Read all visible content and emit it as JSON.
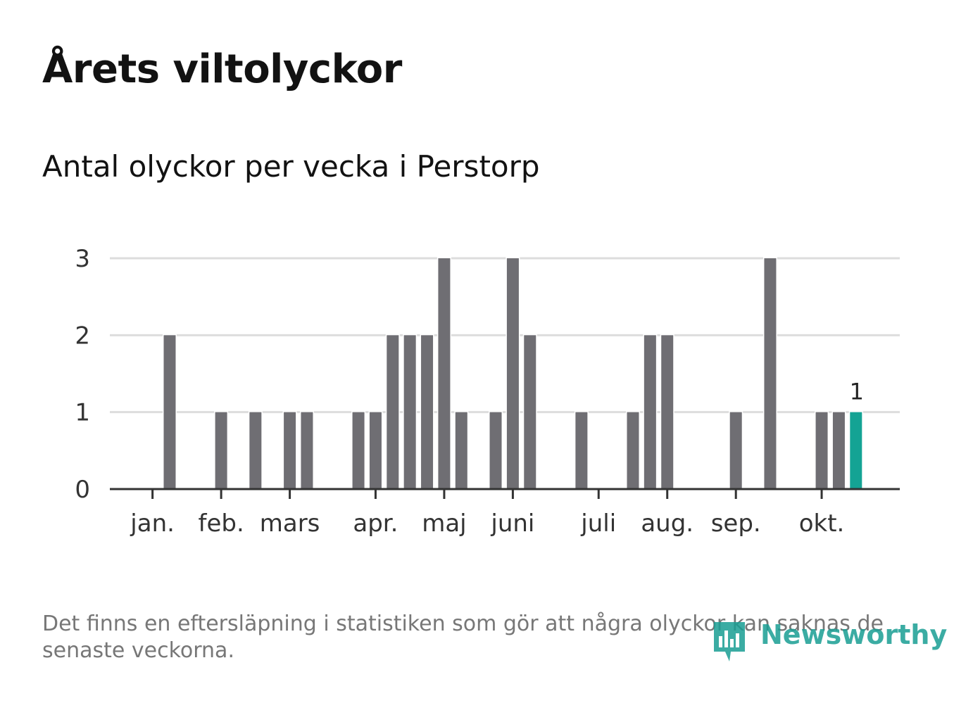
{
  "title": "Årets viltolyckor",
  "subtitle": "Antal olyckor per vecka i Perstorp",
  "footnote": "Det finns en eftersläpning i statistiken som gör att några olyckor kan saknas de senaste veckorna.",
  "brand": "Newsworthy",
  "colors": {
    "bar": "#6f6e73",
    "highlight": "#14a394",
    "grid": "#dddddd",
    "axis": "#333333",
    "brand": "#1a9e94"
  },
  "chart_data": {
    "type": "bar",
    "title": "Antal olyckor per vecka i Perstorp",
    "xlabel": "",
    "ylabel": "",
    "ylim": [
      0,
      3
    ],
    "y_ticks": [
      0,
      1,
      2,
      3
    ],
    "grid": true,
    "x_month_labels": [
      {
        "label": "jan.",
        "week": 1
      },
      {
        "label": "feb.",
        "week": 5
      },
      {
        "label": "mars",
        "week": 9
      },
      {
        "label": "apr.",
        "week": 14
      },
      {
        "label": "maj",
        "week": 18
      },
      {
        "label": "juni",
        "week": 22
      },
      {
        "label": "juli",
        "week": 27
      },
      {
        "label": "aug.",
        "week": 31
      },
      {
        "label": "sep.",
        "week": 35
      },
      {
        "label": "okt.",
        "week": 40
      }
    ],
    "weeks": [
      1,
      2,
      3,
      4,
      5,
      6,
      7,
      8,
      9,
      10,
      11,
      12,
      13,
      14,
      15,
      16,
      17,
      18,
      19,
      20,
      21,
      22,
      23,
      24,
      25,
      26,
      27,
      28,
      29,
      30,
      31,
      32,
      33,
      34,
      35,
      36,
      37,
      38,
      39,
      40,
      41,
      42
    ],
    "values": [
      0,
      2,
      0,
      0,
      1,
      0,
      1,
      0,
      1,
      1,
      0,
      0,
      1,
      1,
      2,
      2,
      2,
      3,
      1,
      0,
      1,
      3,
      2,
      0,
      0,
      1,
      0,
      0,
      1,
      2,
      2,
      0,
      0,
      0,
      1,
      0,
      3,
      0,
      0,
      1,
      1,
      1
    ],
    "highlight_index": 41,
    "highlight_label": "1"
  }
}
